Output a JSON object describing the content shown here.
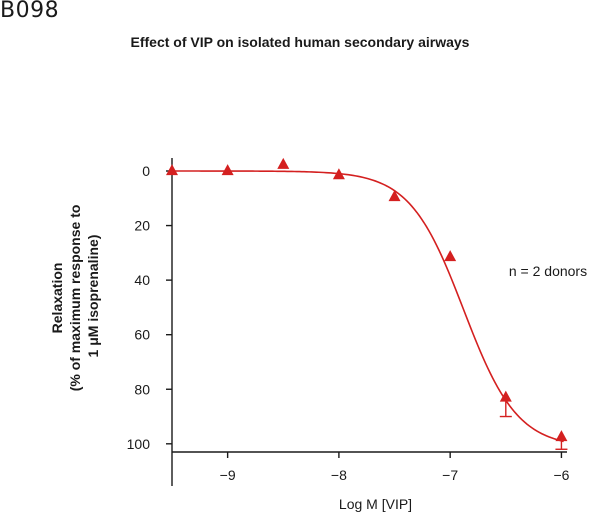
{
  "figure_label": "B098",
  "chart_data": {
    "type": "scatter",
    "title": "Effect of VIP on isolated human secondary airways",
    "xlabel": "Log M [VIP]",
    "ylabel_lines": [
      "Relaxation",
      "(% of maximum response to",
      "1 μM isoprenaline)"
    ],
    "xlim": [
      -9.5,
      -5.95
    ],
    "ylim": [
      0,
      103
    ],
    "y_inverted": true,
    "x_ticks": [
      -9,
      -8,
      -7,
      -6
    ],
    "x_tick_labels": [
      "−9",
      "−8",
      "−7",
      "−6"
    ],
    "y_ticks": [
      0,
      20,
      40,
      60,
      80,
      100
    ],
    "y_tick_labels": [
      "0",
      "20",
      "40",
      "60",
      "80",
      "100"
    ],
    "series": [
      {
        "name": "VIP",
        "color": "#d42020",
        "marker": "triangle",
        "x": [
          -9.5,
          -9.0,
          -8.5,
          -8.0,
          -7.5,
          -7.0,
          -6.5,
          -6.0
        ],
        "y": [
          0.0,
          0.0,
          -2.3,
          1.5,
          9.5,
          31.5,
          83.0,
          97.5
        ],
        "error_upper": [
          0,
          0,
          0,
          0,
          0,
          0,
          7.0,
          4.5
        ]
      }
    ],
    "fit": {
      "type": "sigmoid",
      "color": "#d42020",
      "bottom": 0,
      "top": 101.5,
      "log_ec50": -6.88,
      "hill_slope": 1.8,
      "x_range": [
        -9.5,
        -5.98
      ]
    },
    "annotation": "n = 2 donors",
    "legend": "none",
    "grid": false
  }
}
